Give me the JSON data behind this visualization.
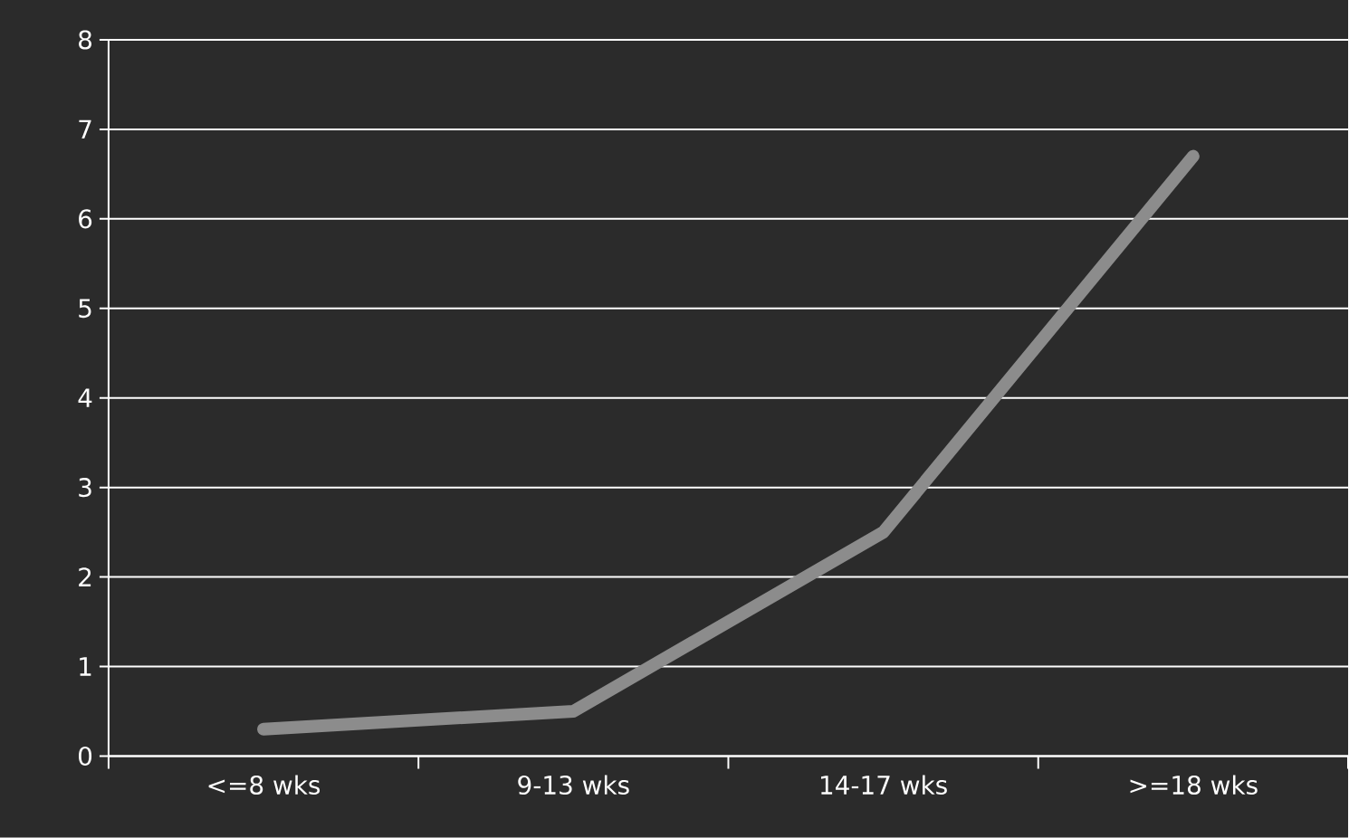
{
  "chart_data": {
    "type": "line",
    "categories": [
      "<=8 wks",
      "9-13 wks",
      "14-17 wks",
      ">=18 wks"
    ],
    "series": [
      {
        "color": "#8c8c8c",
        "values": [
          0.3,
          0.5,
          2.5,
          6.7
        ]
      }
    ],
    "ylim": [
      0,
      8
    ],
    "yticks": [
      0,
      1,
      2,
      3,
      4,
      5,
      6,
      7,
      8
    ],
    "grid": "y",
    "marker": "none",
    "line_style": "solid"
  }
}
